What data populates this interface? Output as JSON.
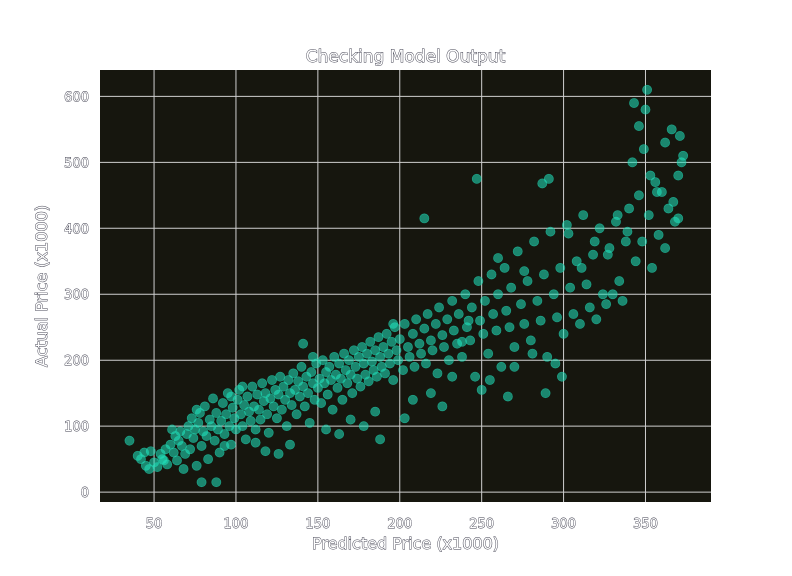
{
  "chart_data": {
    "type": "scatter",
    "title": "Checking Model Output",
    "xlabel": "Predicted Price (x1000)",
    "ylabel": "Actual Price (x1000)",
    "xlim": [
      17,
      390
    ],
    "ylim": [
      -15,
      640
    ],
    "x_ticks": [
      50,
      100,
      150,
      200,
      250,
      300,
      350
    ],
    "y_ticks": [
      0,
      100,
      200,
      300,
      400,
      500,
      600
    ],
    "grid": true,
    "legend": "none",
    "colors": {
      "background": "#16160e",
      "point": "#20e6c0",
      "grid": "#cfcfcf"
    },
    "series": [
      {
        "points": [
          [
            35,
            78
          ],
          [
            40,
            55
          ],
          [
            42,
            50
          ],
          [
            45,
            40
          ],
          [
            47,
            35
          ],
          [
            48,
            62
          ],
          [
            50,
            45
          ],
          [
            52,
            38
          ],
          [
            54,
            58
          ],
          [
            55,
            50
          ],
          [
            57,
            65
          ],
          [
            58,
            42
          ],
          [
            60,
            72
          ],
          [
            62,
            60
          ],
          [
            63,
            85
          ],
          [
            64,
            48
          ],
          [
            65,
            78
          ],
          [
            66,
            92
          ],
          [
            67,
            70
          ],
          [
            68,
            35
          ],
          [
            70,
            88
          ],
          [
            71,
            100
          ],
          [
            72,
            65
          ],
          [
            73,
            112
          ],
          [
            74,
            82
          ],
          [
            75,
            95
          ],
          [
            76,
            40
          ],
          [
            77,
            105
          ],
          [
            78,
            120
          ],
          [
            79,
            70
          ],
          [
            80,
            92
          ],
          [
            81,
            130
          ],
          [
            82,
            85
          ],
          [
            83,
            50
          ],
          [
            84,
            110
          ],
          [
            85,
            100
          ],
          [
            86,
            142
          ],
          [
            87,
            78
          ],
          [
            88,
            120
          ],
          [
            89,
            95
          ],
          [
            90,
            60
          ],
          [
            91,
            108
          ],
          [
            92,
            135
          ],
          [
            93,
            88
          ],
          [
            94,
            118
          ],
          [
            95,
            150
          ],
          [
            96,
            100
          ],
          [
            97,
            72
          ],
          [
            98,
            128
          ],
          [
            99,
            112
          ],
          [
            100,
            95
          ],
          [
            101,
            140
          ],
          [
            102,
            155
          ],
          [
            103,
            118
          ],
          [
            104,
            100
          ],
          [
            105,
            132
          ],
          [
            106,
            80
          ],
          [
            107,
            145
          ],
          [
            108,
            122
          ],
          [
            109,
            108
          ],
          [
            110,
            160
          ],
          [
            111,
            130
          ],
          [
            112,
            95
          ],
          [
            113,
            148
          ],
          [
            114,
            125
          ],
          [
            115,
            110
          ],
          [
            116,
            165
          ],
          [
            117,
            138
          ],
          [
            118,
            150
          ],
          [
            119,
            118
          ],
          [
            120,
            90
          ],
          [
            121,
            142
          ],
          [
            122,
            170
          ],
          [
            123,
            130
          ],
          [
            124,
            155
          ],
          [
            125,
            112
          ],
          [
            126,
            148
          ],
          [
            127,
            175
          ],
          [
            128,
            125
          ],
          [
            129,
            160
          ],
          [
            130,
            140
          ],
          [
            131,
            100
          ],
          [
            132,
            170
          ],
          [
            133,
            150
          ],
          [
            134,
            132
          ],
          [
            135,
            180
          ],
          [
            136,
            155
          ],
          [
            137,
            118
          ],
          [
            138,
            168
          ],
          [
            139,
            145
          ],
          [
            140,
            190
          ],
          [
            141,
            160
          ],
          [
            142,
            130
          ],
          [
            143,
            175
          ],
          [
            144,
            150
          ],
          [
            145,
            105
          ],
          [
            146,
            182
          ],
          [
            147,
            165
          ],
          [
            148,
            140
          ],
          [
            149,
            195
          ],
          [
            150,
            158
          ],
          [
            151,
            172
          ],
          [
            152,
            135
          ],
          [
            153,
            200
          ],
          [
            154,
            165
          ],
          [
            155,
            182
          ],
          [
            156,
            148
          ],
          [
            157,
            190
          ],
          [
            158,
            170
          ],
          [
            159,
            125
          ],
          [
            160,
            205
          ],
          [
            161,
            178
          ],
          [
            162,
            158
          ],
          [
            163,
            195
          ],
          [
            164,
            172
          ],
          [
            165,
            140
          ],
          [
            166,
            210
          ],
          [
            167,
            185
          ],
          [
            168,
            165
          ],
          [
            169,
            200
          ],
          [
            170,
            178
          ],
          [
            171,
            150
          ],
          [
            172,
            215
          ],
          [
            173,
            190
          ],
          [
            174,
            172
          ],
          [
            175,
            205
          ],
          [
            176,
            160
          ],
          [
            177,
            220
          ],
          [
            178,
            195
          ],
          [
            179,
            178
          ],
          [
            180,
            210
          ],
          [
            181,
            168
          ],
          [
            182,
            228
          ],
          [
            183,
            198
          ],
          [
            184,
            185
          ],
          [
            185,
            215
          ],
          [
            186,
            175
          ],
          [
            187,
            235
          ],
          [
            188,
            205
          ],
          [
            189,
            190
          ],
          [
            190,
            220
          ],
          [
            191,
            180
          ],
          [
            192,
            240
          ],
          [
            193,
            210
          ],
          [
            194,
            195
          ],
          [
            195,
            228
          ],
          [
            196,
            170
          ],
          [
            197,
            250
          ],
          [
            198,
            215
          ],
          [
            199,
            200
          ],
          [
            200,
            232
          ],
          [
            202,
            185
          ],
          [
            203,
            255
          ],
          [
            205,
            220
          ],
          [
            206,
            205
          ],
          [
            208,
            240
          ],
          [
            209,
            190
          ],
          [
            210,
            262
          ],
          [
            212,
            225
          ],
          [
            213,
            210
          ],
          [
            215,
            248
          ],
          [
            216,
            195
          ],
          [
            217,
            270
          ],
          [
            219,
            230
          ],
          [
            220,
            215
          ],
          [
            222,
            255
          ],
          [
            223,
            180
          ],
          [
            224,
            280
          ],
          [
            226,
            238
          ],
          [
            227,
            220
          ],
          [
            229,
            262
          ],
          [
            230,
            200
          ],
          [
            232,
            290
          ],
          [
            233,
            245
          ],
          [
            235,
            225
          ],
          [
            236,
            270
          ],
          [
            238,
            205
          ],
          [
            240,
            300
          ],
          [
            241,
            250
          ],
          [
            243,
            230
          ],
          [
            244,
            280
          ],
          [
            246,
            175
          ],
          [
            248,
            320
          ],
          [
            249,
            260
          ],
          [
            251,
            240
          ],
          [
            252,
            290
          ],
          [
            254,
            210
          ],
          [
            256,
            330
          ],
          [
            257,
            270
          ],
          [
            259,
            245
          ],
          [
            260,
            300
          ],
          [
            262,
            190
          ],
          [
            264,
            340
          ],
          [
            265,
            275
          ],
          [
            267,
            250
          ],
          [
            268,
            310
          ],
          [
            270,
            220
          ],
          [
            272,
            365
          ],
          [
            274,
            285
          ],
          [
            276,
            255
          ],
          [
            278,
            320
          ],
          [
            280,
            230
          ],
          [
            282,
            380
          ],
          [
            284,
            290
          ],
          [
            286,
            260
          ],
          [
            288,
            330
          ],
          [
            290,
            205
          ],
          [
            292,
            395
          ],
          [
            294,
            300
          ],
          [
            296,
            265
          ],
          [
            298,
            340
          ],
          [
            300,
            240
          ],
          [
            302,
            405
          ],
          [
            304,
            310
          ],
          [
            306,
            270
          ],
          [
            308,
            350
          ],
          [
            310,
            255
          ],
          [
            312,
            420
          ],
          [
            314,
            315
          ],
          [
            316,
            280
          ],
          [
            318,
            360
          ],
          [
            320,
            262
          ],
          [
            322,
            400
          ],
          [
            324,
            300
          ],
          [
            326,
            285
          ],
          [
            328,
            370
          ],
          [
            330,
            300
          ],
          [
            332,
            410
          ],
          [
            334,
            320
          ],
          [
            336,
            290
          ],
          [
            338,
            380
          ],
          [
            340,
            430
          ],
          [
            342,
            500
          ],
          [
            344,
            350
          ],
          [
            346,
            450
          ],
          [
            348,
            380
          ],
          [
            350,
            580
          ],
          [
            352,
            420
          ],
          [
            354,
            340
          ],
          [
            356,
            470
          ],
          [
            358,
            390
          ],
          [
            360,
            455
          ],
          [
            362,
            370
          ],
          [
            364,
            430
          ],
          [
            366,
            550
          ],
          [
            368,
            410
          ],
          [
            370,
            480
          ],
          [
            371,
            540
          ],
          [
            372,
            500
          ],
          [
            44,
            60
          ],
          [
            56,
            48
          ],
          [
            61,
            95
          ],
          [
            69,
            58
          ],
          [
            76,
            125
          ],
          [
            79,
            15
          ],
          [
            88,
            15
          ],
          [
            93,
            70
          ],
          [
            97,
            145
          ],
          [
            104,
            160
          ],
          [
            112,
            75
          ],
          [
            118,
            62
          ],
          [
            126,
            58
          ],
          [
            133,
            72
          ],
          [
            141,
            225
          ],
          [
            147,
            205
          ],
          [
            155,
            95
          ],
          [
            163,
            88
          ],
          [
            170,
            110
          ],
          [
            178,
            100
          ],
          [
            185,
            122
          ],
          [
            188,
            80
          ],
          [
            196,
            255
          ],
          [
            203,
            112
          ],
          [
            208,
            140
          ],
          [
            215,
            415
          ],
          [
            219,
            150
          ],
          [
            226,
            130
          ],
          [
            232,
            175
          ],
          [
            238,
            228
          ],
          [
            242,
            260
          ],
          [
            247,
            475
          ],
          [
            250,
            155
          ],
          [
            255,
            170
          ],
          [
            260,
            355
          ],
          [
            266,
            145
          ],
          [
            270,
            190
          ],
          [
            276,
            335
          ],
          [
            281,
            210
          ],
          [
            287,
            468
          ],
          [
            289,
            150
          ],
          [
            291,
            475
          ],
          [
            295,
            195
          ],
          [
            299,
            175
          ],
          [
            303,
            392
          ],
          [
            311,
            340
          ],
          [
            319,
            380
          ],
          [
            327,
            360
          ],
          [
            333,
            420
          ],
          [
            339,
            395
          ],
          [
            343,
            590
          ],
          [
            346,
            555
          ],
          [
            349,
            520
          ],
          [
            351,
            610
          ],
          [
            353,
            480
          ],
          [
            357,
            455
          ],
          [
            362,
            530
          ],
          [
            367,
            440
          ],
          [
            370,
            415
          ],
          [
            373,
            510
          ]
        ]
      }
    ]
  }
}
